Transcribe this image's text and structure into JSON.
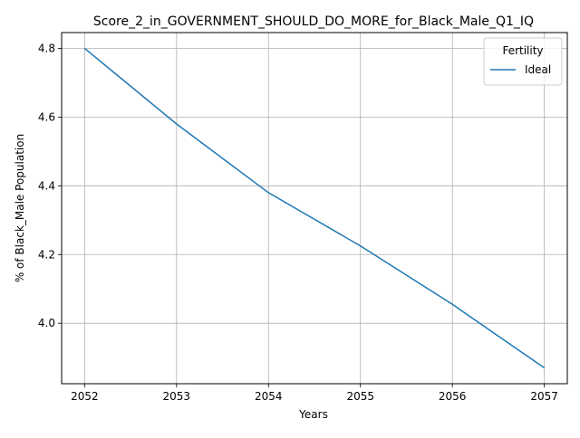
{
  "chart_data": {
    "type": "line",
    "title": "Score_2_in_GOVERNMENT_SHOULD_DO_MORE_for_Black_Male_Q1_IQ",
    "xlabel": "Years",
    "ylabel": "% of Black_Male Population",
    "x": [
      2052,
      2053,
      2054,
      2055,
      2056,
      2057
    ],
    "x_tick_labels": [
      "2052",
      "2053",
      "2054",
      "2055",
      "2056",
      "2057"
    ],
    "y_ticks": [
      4.0,
      4.2,
      4.4,
      4.6,
      4.8
    ],
    "y_tick_labels": [
      "4.0",
      "4.2",
      "4.4",
      "4.6",
      "4.8"
    ],
    "xlim": [
      2051.75,
      2057.25
    ],
    "ylim": [
      3.824,
      4.846
    ],
    "grid": true,
    "legend": {
      "title": "Fertility",
      "placement": "top-right"
    },
    "series": [
      {
        "name": "Ideal",
        "color": "#1f77b4",
        "values": [
          4.8,
          4.58,
          4.38,
          4.225,
          4.055,
          3.87
        ]
      }
    ]
  }
}
